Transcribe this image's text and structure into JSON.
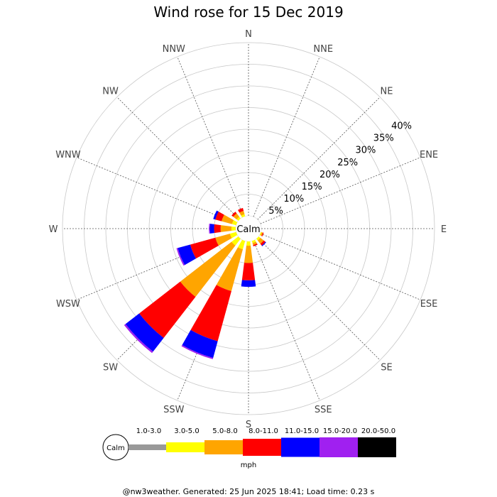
{
  "chart_data": {
    "type": "wind-rose",
    "title": "Wind rose for 15 Dec 2019",
    "center_label": "Calm",
    "directions": [
      "N",
      "NNE",
      "NE",
      "ENE",
      "E",
      "ESE",
      "SE",
      "SSE",
      "S",
      "SSW",
      "SW",
      "WSW",
      "W",
      "WNW",
      "NW",
      "NNW"
    ],
    "ring_labels": [
      "5%",
      "10%",
      "15%",
      "20%",
      "25%",
      "30%",
      "35%",
      "40%"
    ],
    "rmax": 40,
    "grid": true,
    "speed_bins": [
      {
        "label": "1.0-3.0",
        "color": "#999999"
      },
      {
        "label": "3.0-5.0",
        "color": "#ffff00"
      },
      {
        "label": "5.0-8.0",
        "color": "#ffa500"
      },
      {
        "label": "8.0-11.0",
        "color": "#ff0000"
      },
      {
        "label": "11.0-15.0",
        "color": "#0000ff"
      },
      {
        "label": "15.0-20.0",
        "color": "#a020f0"
      },
      {
        "label": "20.0-50.0",
        "color": "#000000"
      }
    ],
    "units": "mph",
    "frequencies": {
      "NNW": [
        0,
        0.5,
        0.8,
        0.7,
        0,
        0,
        0
      ],
      "NW": [
        0,
        0.5,
        1.0,
        0.5,
        0,
        0,
        0
      ],
      "WNW": [
        0,
        1.0,
        2.5,
        1.5,
        0.5,
        0,
        0
      ],
      "W": [
        0,
        1.0,
        2.5,
        1.5,
        1.0,
        0.2,
        0
      ],
      "WSW": [
        0,
        1.5,
        3.5,
        6.0,
        3.0,
        0.3,
        0
      ],
      "SW": [
        0,
        2.0,
        15.0,
        12.0,
        4.0,
        0.4,
        0
      ],
      "SSW": [
        0,
        2.0,
        10.0,
        12.0,
        4.0,
        0.3,
        0
      ],
      "S": [
        0,
        1.0,
        4.0,
        4.0,
        1.5,
        0,
        0
      ],
      "SSE": [
        0,
        0.5,
        0.5,
        0.3,
        0,
        0,
        0
      ],
      "SE": [
        0,
        0.5,
        1.0,
        0.5,
        0.2,
        0,
        0
      ],
      "ESE": [
        0,
        0.2,
        0.3,
        0.2,
        0,
        0,
        0
      ],
      "N": [
        0,
        0,
        0,
        0,
        0,
        0,
        0
      ],
      "NNE": [
        0,
        0,
        0,
        0,
        0,
        0,
        0
      ],
      "NE": [
        0,
        0,
        0,
        0,
        0,
        0,
        0
      ],
      "ENE": [
        0,
        0,
        0,
        0,
        0,
        0,
        0
      ],
      "E": [
        0,
        0,
        0,
        0,
        0,
        0,
        0
      ]
    }
  },
  "footer": "@nw3weather. Generated: 25 Jun 2025 18:41; Load time: 0.23 s"
}
